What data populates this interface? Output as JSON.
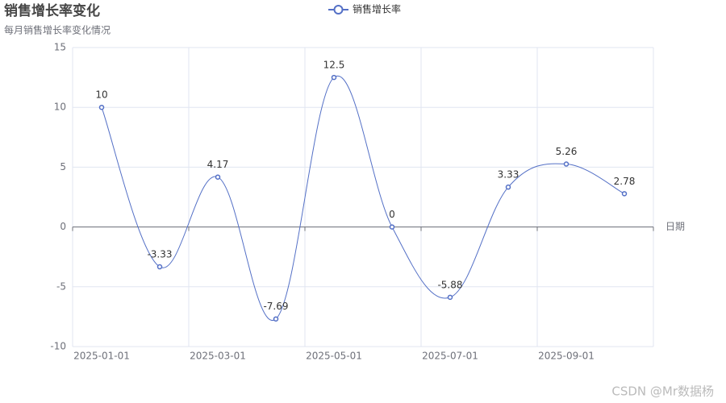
{
  "chart_data": {
    "type": "line",
    "title": "销售增长率变化",
    "subtitle": "每月销售增长率变化情况",
    "xlabel": "日期",
    "categories": [
      "2025-01-01",
      null,
      "2025-03-01",
      null,
      "2025-05-01",
      null,
      "2025-07-01",
      null,
      "2025-09-01",
      null
    ],
    "series": [
      {
        "name": "销售增长率",
        "color": "#5470c6",
        "values": [
          10,
          -3.33,
          4.17,
          -7.69,
          12.5,
          0,
          -5.88,
          3.33,
          5.26,
          2.78
        ]
      }
    ],
    "ylim": [
      -10,
      15
    ],
    "yticks": [
      -10,
      -5,
      0,
      5,
      10,
      15
    ],
    "grid": true,
    "smooth": true,
    "legend": "top",
    "watermark": "CSDN @Mr数据杨"
  }
}
